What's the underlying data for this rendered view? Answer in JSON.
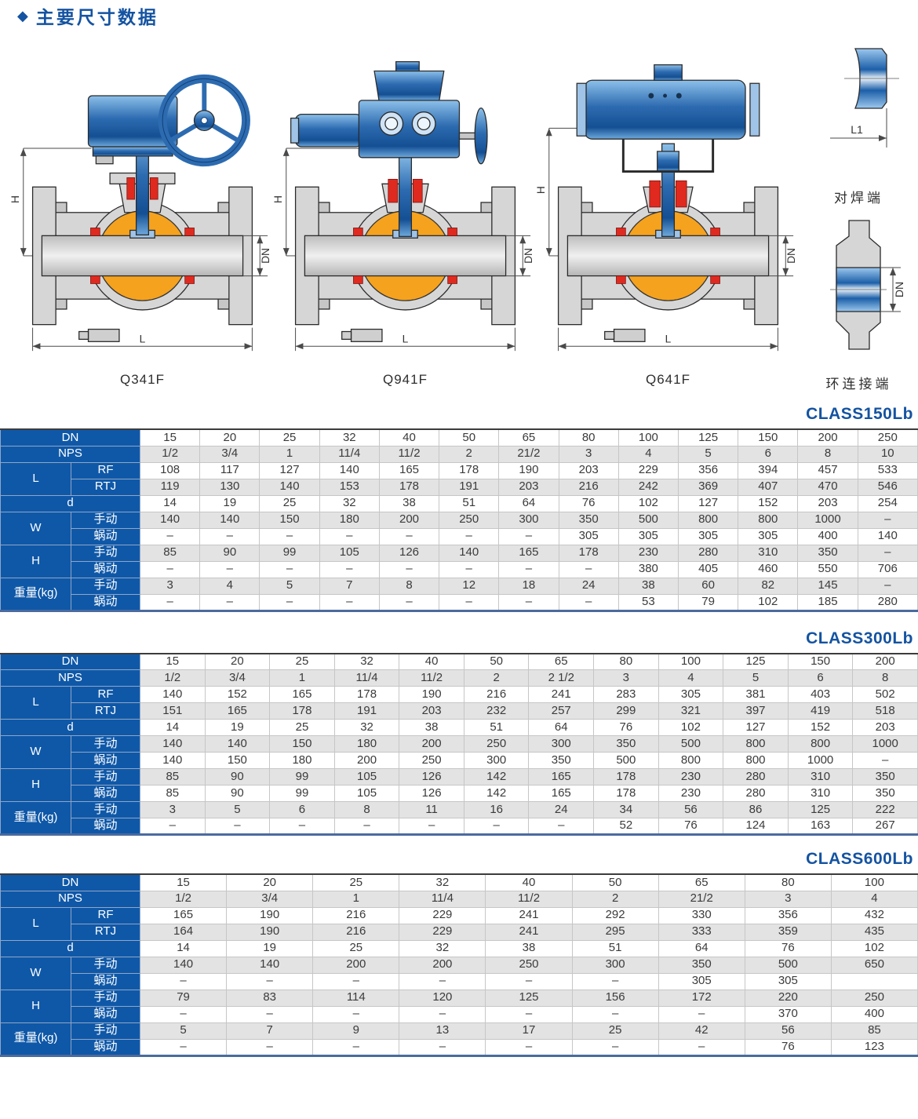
{
  "page": {
    "marker": "◆",
    "title": "主要尺寸数据"
  },
  "diagrams": {
    "dim_labels": {
      "h": "H",
      "dn": "DN",
      "l": "L",
      "l1": "L1"
    },
    "valves": [
      {
        "caption": "Q341F"
      },
      {
        "caption": "Q941F"
      },
      {
        "caption": "Q641F"
      }
    ],
    "ends": [
      {
        "caption": "对焊端"
      },
      {
        "caption": "环连接端"
      }
    ]
  },
  "colors": {
    "accent_blue": "#1453a1",
    "header_blue": "#0f58a8",
    "row_gray": "#e3e3e3",
    "body_gray": "#d6d6d6",
    "ball_orange": "#f5a21f",
    "seal_red": "#e02a1f",
    "steel_blue": "#2d6bb0",
    "line_dark": "#2a2a2a"
  },
  "tables": [
    {
      "title": "CLASS150Lb",
      "row_groups": [
        {
          "label": "DN",
          "rows": [
            {
              "sub": null,
              "values": [
                "15",
                "20",
                "25",
                "32",
                "40",
                "50",
                "65",
                "80",
                "100",
                "125",
                "150",
                "200",
                "250"
              ]
            }
          ]
        },
        {
          "label": "NPS",
          "rows": [
            {
              "sub": null,
              "values": [
                "1/2",
                "3/4",
                "1",
                "11/4",
                "11/2",
                "2",
                "21/2",
                "3",
                "4",
                "5",
                "6",
                "8",
                "10"
              ]
            }
          ]
        },
        {
          "label": "L",
          "rows": [
            {
              "sub": "RF",
              "values": [
                "108",
                "117",
                "127",
                "140",
                "165",
                "178",
                "190",
                "203",
                "229",
                "356",
                "394",
                "457",
                "533"
              ]
            },
            {
              "sub": "RTJ",
              "values": [
                "119",
                "130",
                "140",
                "153",
                "178",
                "191",
                "203",
                "216",
                "242",
                "369",
                "407",
                "470",
                "546"
              ]
            }
          ]
        },
        {
          "label": "d",
          "rows": [
            {
              "sub": null,
              "values": [
                "14",
                "19",
                "25",
                "32",
                "38",
                "51",
                "64",
                "76",
                "102",
                "127",
                "152",
                "203",
                "254"
              ]
            }
          ]
        },
        {
          "label": "W",
          "rows": [
            {
              "sub": "手动",
              "values": [
                "140",
                "140",
                "150",
                "180",
                "200",
                "250",
                "300",
                "350",
                "500",
                "800",
                "800",
                "1000",
                "–"
              ]
            },
            {
              "sub": "蜗动",
              "values": [
                "–",
                "–",
                "–",
                "–",
                "–",
                "–",
                "–",
                "305",
                "305",
                "305",
                "305",
                "400",
                "140"
              ]
            }
          ]
        },
        {
          "label": "H",
          "rows": [
            {
              "sub": "手动",
              "values": [
                "85",
                "90",
                "99",
                "105",
                "126",
                "140",
                "165",
                "178",
                "230",
                "280",
                "310",
                "350",
                "–"
              ]
            },
            {
              "sub": "蜗动",
              "values": [
                "–",
                "–",
                "–",
                "–",
                "–",
                "–",
                "–",
                "–",
                "380",
                "405",
                "460",
                "550",
                "706"
              ]
            }
          ]
        },
        {
          "label": "重量(kg)",
          "rows": [
            {
              "sub": "手动",
              "values": [
                "3",
                "4",
                "5",
                "7",
                "8",
                "12",
                "18",
                "24",
                "38",
                "60",
                "82",
                "145",
                "–"
              ]
            },
            {
              "sub": "蜗动",
              "values": [
                "–",
                "–",
                "–",
                "–",
                "–",
                "–",
                "–",
                "–",
                "53",
                "79",
                "102",
                "185",
                "280"
              ]
            }
          ]
        }
      ]
    },
    {
      "title": "CLASS300Lb",
      "row_groups": [
        {
          "label": "DN",
          "rows": [
            {
              "sub": null,
              "values": [
                "15",
                "20",
                "25",
                "32",
                "40",
                "50",
                "65",
                "80",
                "100",
                "125",
                "150",
                "200"
              ]
            }
          ]
        },
        {
          "label": "NPS",
          "rows": [
            {
              "sub": null,
              "values": [
                "1/2",
                "3/4",
                "1",
                "11/4",
                "11/2",
                "2",
                "2 1/2",
                "3",
                "4",
                "5",
                "6",
                "8"
              ]
            }
          ]
        },
        {
          "label": "L",
          "rows": [
            {
              "sub": "RF",
              "values": [
                "140",
                "152",
                "165",
                "178",
                "190",
                "216",
                "241",
                "283",
                "305",
                "381",
                "403",
                "502"
              ]
            },
            {
              "sub": "RTJ",
              "values": [
                "151",
                "165",
                "178",
                "191",
                "203",
                "232",
                "257",
                "299",
                "321",
                "397",
                "419",
                "518"
              ]
            }
          ]
        },
        {
          "label": "d",
          "rows": [
            {
              "sub": null,
              "values": [
                "14",
                "19",
                "25",
                "32",
                "38",
                "51",
                "64",
                "76",
                "102",
                "127",
                "152",
                "203"
              ]
            }
          ]
        },
        {
          "label": "W",
          "rows": [
            {
              "sub": "手动",
              "values": [
                "140",
                "140",
                "150",
                "180",
                "200",
                "250",
                "300",
                "350",
                "500",
                "800",
                "800",
                "1000"
              ]
            },
            {
              "sub": "蜗动",
              "values": [
                "140",
                "150",
                "180",
                "200",
                "250",
                "300",
                "350",
                "500",
                "800",
                "800",
                "1000",
                "–"
              ]
            }
          ]
        },
        {
          "label": "H",
          "rows": [
            {
              "sub": "手动",
              "values": [
                "85",
                "90",
                "99",
                "105",
                "126",
                "142",
                "165",
                "178",
                "230",
                "280",
                "310",
                "350"
              ]
            },
            {
              "sub": "蜗动",
              "values": [
                "85",
                "90",
                "99",
                "105",
                "126",
                "142",
                "165",
                "178",
                "230",
                "280",
                "310",
                "350"
              ]
            }
          ]
        },
        {
          "label": "重量(kg)",
          "rows": [
            {
              "sub": "手动",
              "values": [
                "3",
                "5",
                "6",
                "8",
                "11",
                "16",
                "24",
                "34",
                "56",
                "86",
                "125",
                "222"
              ]
            },
            {
              "sub": "蜗动",
              "values": [
                "–",
                "–",
                "–",
                "–",
                "–",
                "–",
                "–",
                "52",
                "76",
                "124",
                "163",
                "267"
              ]
            }
          ]
        }
      ]
    },
    {
      "title": "CLASS600Lb",
      "row_groups": [
        {
          "label": "DN",
          "rows": [
            {
              "sub": null,
              "values": [
                "15",
                "20",
                "25",
                "32",
                "40",
                "50",
                "65",
                "80",
                "100"
              ]
            }
          ]
        },
        {
          "label": "NPS",
          "rows": [
            {
              "sub": null,
              "values": [
                "1/2",
                "3/4",
                "1",
                "11/4",
                "11/2",
                "2",
                "21/2",
                "3",
                "4"
              ]
            }
          ]
        },
        {
          "label": "L",
          "rows": [
            {
              "sub": "RF",
              "values": [
                "165",
                "190",
                "216",
                "229",
                "241",
                "292",
                "330",
                "356",
                "432"
              ]
            },
            {
              "sub": "RTJ",
              "values": [
                "164",
                "190",
                "216",
                "229",
                "241",
                "295",
                "333",
                "359",
                "435"
              ]
            }
          ]
        },
        {
          "label": "d",
          "rows": [
            {
              "sub": null,
              "values": [
                "14",
                "19",
                "25",
                "32",
                "38",
                "51",
                "64",
                "76",
                "102"
              ]
            }
          ]
        },
        {
          "label": "W",
          "rows": [
            {
              "sub": "手动",
              "values": [
                "140",
                "140",
                "200",
                "200",
                "250",
                "300",
                "350",
                "500",
                "650"
              ]
            },
            {
              "sub": "蜗动",
              "values": [
                "–",
                "–",
                "–",
                "–",
                "–",
                "–",
                "305",
                "305",
                ""
              ]
            }
          ]
        },
        {
          "label": "H",
          "rows": [
            {
              "sub": "手动",
              "values": [
                "79",
                "83",
                "114",
                "120",
                "125",
                "156",
                "172",
                "220",
                "250"
              ]
            },
            {
              "sub": "蜗动",
              "values": [
                "–",
                "–",
                "–",
                "–",
                "–",
                "–",
                "–",
                "370",
                "400"
              ]
            }
          ]
        },
        {
          "label": "重量(kg)",
          "rows": [
            {
              "sub": "手动",
              "values": [
                "5",
                "7",
                "9",
                "13",
                "17",
                "25",
                "42",
                "56",
                "85"
              ]
            },
            {
              "sub": "蜗动",
              "values": [
                "–",
                "–",
                "–",
                "–",
                "–",
                "–",
                "–",
                "76",
                "123"
              ]
            }
          ]
        }
      ]
    }
  ]
}
